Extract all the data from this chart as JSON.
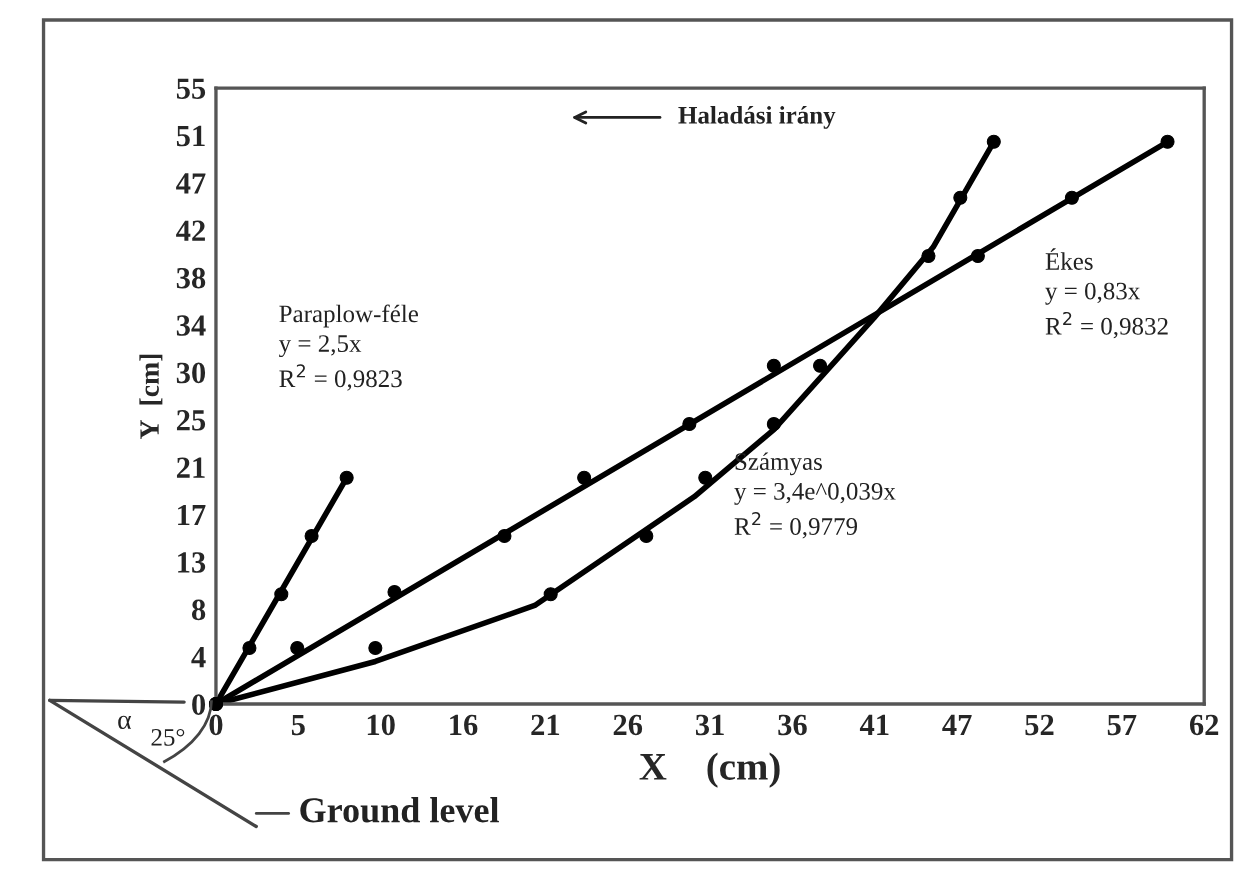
{
  "chart_data": {
    "type": "scatter",
    "xlabel": "X    (cm)",
    "ylabel": "Y  [cm]",
    "xlim": [
      0,
      62
    ],
    "ylim": [
      0,
      55
    ],
    "xticks": [
      0,
      {
        "value": 5.1667,
        "label": "5"
      },
      {
        "value": 10.3333,
        "label": "10"
      },
      {
        "value": 15.5,
        "label": "16"
      },
      {
        "value": 20.6667,
        "label": "21"
      },
      {
        "value": 25.8333,
        "label": "26"
      },
      {
        "value": 31,
        "label": "31"
      },
      {
        "value": 36.1667,
        "label": "36"
      },
      {
        "value": 41.3333,
        "label": "41"
      },
      {
        "value": 46.5,
        "label": "47"
      },
      {
        "value": 51.6667,
        "label": "52"
      },
      {
        "value": 56.8333,
        "label": "57"
      },
      62
    ],
    "yticks": [
      0,
      {
        "value": 4.2308,
        "label": "4"
      },
      {
        "value": 8.4615,
        "label": "8"
      },
      {
        "value": 12.6923,
        "label": "13"
      },
      {
        "value": 16.9231,
        "label": "17"
      },
      {
        "value": 21.1538,
        "label": "21"
      },
      {
        "value": 25.3846,
        "label": "25"
      },
      {
        "value": 29.6154,
        "label": "30"
      },
      {
        "value": 33.8462,
        "label": "34"
      },
      {
        "value": 38.0769,
        "label": "38"
      },
      {
        "value": 42.3077,
        "label": "42"
      },
      {
        "value": 46.5385,
        "label": "47"
      },
      {
        "value": 50.7692,
        "label": "51"
      },
      55
    ],
    "grid": false,
    "legend": false,
    "marker": "circle",
    "series": [
      {
        "color": "#000000",
        "x": [
          0,
          2.1,
          4.1,
          6.0,
          8.2
        ],
        "values": [
          0,
          5.0,
          9.8,
          15.0,
          20.2
        ]
      },
      {
        "color": "#000000",
        "x": [
          0,
          5.1,
          11.2,
          18.1,
          23.1,
          29.7,
          35.0,
          47.8,
          53.7,
          59.7
        ],
        "values": [
          0,
          5.0,
          10.0,
          15.0,
          20.2,
          25.0,
          30.2,
          40.0,
          45.2,
          50.2
        ]
      },
      {
        "color": "#000000",
        "x": [
          0,
          10.0,
          21.0,
          27.0,
          30.7,
          35.0,
          37.9,
          44.7,
          46.7,
          48.8
        ],
        "values": [
          0,
          5.0,
          9.8,
          15.0,
          20.2,
          25.0,
          30.2,
          40.0,
          45.2,
          50.2
        ]
      },
      {
        "type": "line",
        "marker": "none",
        "color": "#000000",
        "x": [
          0,
          8.2
        ],
        "values": [
          0,
          20.2
        ]
      },
      {
        "type": "line",
        "marker": "none",
        "color": "#000000",
        "x": [
          0,
          59.7
        ],
        "values": [
          0,
          50.2
        ]
      },
      {
        "type": "line",
        "marker": "none",
        "color": "#000000",
        "x": [
          0,
          10,
          20,
          30,
          35,
          41.3,
          45,
          48.8
        ],
        "values": [
          0,
          3.8,
          8.8,
          18.5,
          24.5,
          34.5,
          40.8,
          50.2
        ]
      }
    ],
    "annotations": [
      "Haladási irány",
      "Paraplow-féle\ny = 2,5x\nR$^{2}$ = 0,9823",
      "Ékes\ny = 0,83x\nR$^{2}$ = 0,9832",
      "Számyas\ny = 3,4e^0,039x\nR$^{2}$ = 0,9779",
      "Ground level",
      "α",
      "25°"
    ]
  }
}
